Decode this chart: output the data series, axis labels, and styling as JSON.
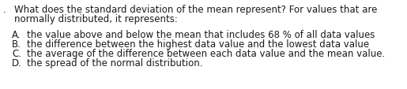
{
  "background_color": "#ffffff",
  "question_prefix": ".",
  "question_line1": "What does the standard deviation of the mean represent? For values that are",
  "question_line2": "normally distributed, it represents:",
  "option_labels": [
    "A.",
    "B.",
    "C.",
    "D."
  ],
  "option_texts": [
    "the value above and below the mean that includes 68 % of all data values",
    "the difference between the highest data value and the lowest data value",
    "the average of the difference between each data value and the mean value.",
    "the spread of the normal distribution."
  ],
  "font_size": 8.5,
  "text_color": "#1a1a1a",
  "font_family": "DejaVu Sans",
  "fig_width": 5.15,
  "fig_height": 1.14,
  "dpi": 100
}
